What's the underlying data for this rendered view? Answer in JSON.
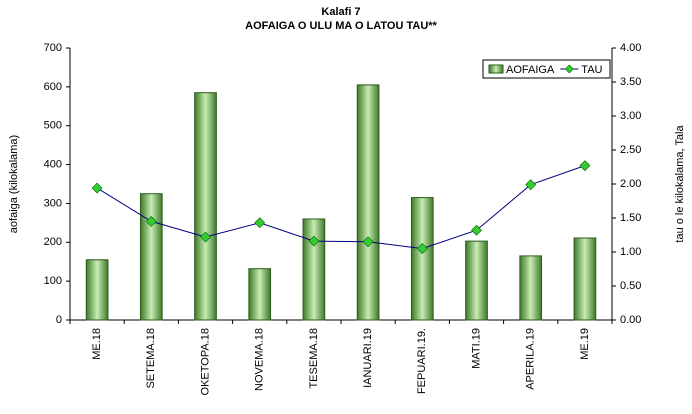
{
  "chart_data": {
    "type": "bar",
    "title": "Kalafi 7",
    "subtitle": "AOFAIGA O ULU MA O LATOU TAU**",
    "y_label": "aofaiga (kilokalama)",
    "y2_label": "tau o le kilokalama, Tala",
    "categories": [
      "ME.18",
      "SETEMA.18",
      "OKETOPA.18",
      "NOVEMA.18",
      "TESEMA.18",
      "IANUARI.19",
      "FEPUARI.19.",
      "MATI.19",
      "APERILA.19",
      "ME.19"
    ],
    "series": [
      {
        "name": "AOFAIGA",
        "type": "bar",
        "color": "#5a9a3a",
        "values": [
          155,
          325,
          585,
          132,
          260,
          605,
          315,
          203,
          165,
          211
        ]
      },
      {
        "name": "TAU",
        "type": "line",
        "axis": "y2",
        "color": "#000080",
        "marker_color": "#33cc33",
        "values": [
          1.94,
          1.45,
          1.22,
          1.43,
          1.16,
          1.15,
          1.05,
          1.32,
          1.99,
          2.27
        ]
      }
    ],
    "ylim": [
      0,
      700
    ],
    "yticks": [
      0,
      100,
      200,
      300,
      400,
      500,
      600,
      700
    ],
    "y2lim": [
      0,
      4
    ],
    "y2ticks": [
      {
        "value": 0,
        "label": "0.00"
      },
      {
        "value": 0.5,
        "label": "0.50"
      },
      {
        "value": 1,
        "label": "1.00"
      },
      {
        "value": 1.5,
        "label": "1.50"
      },
      {
        "value": 2,
        "label": "2.00"
      },
      {
        "value": 2.5,
        "label": "2.50"
      },
      {
        "value": 3,
        "label": "3.00"
      },
      {
        "value": 3.5,
        "label": "3.50"
      },
      {
        "value": 4,
        "label": "4.00"
      }
    ],
    "grid": false,
    "legend": "top-right"
  }
}
